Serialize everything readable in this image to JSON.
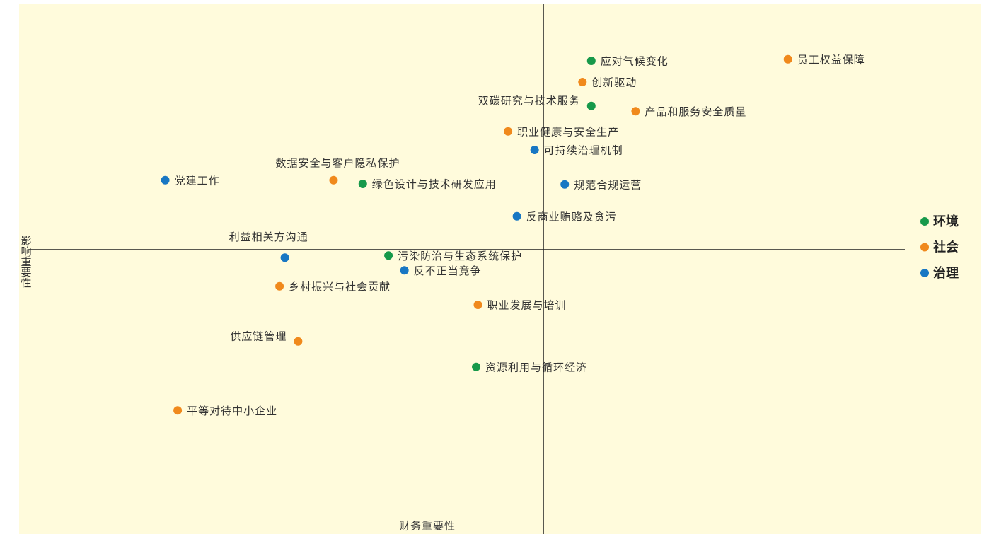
{
  "chart_data": {
    "type": "scatter",
    "x_label": "财务重要性",
    "y_label": "影响重要性",
    "xlim": [
      0,
      100
    ],
    "ylim": [
      0,
      100
    ],
    "series": [
      {
        "name": "环境",
        "color": "#17994a",
        "labels": [
          "应对气候变化",
          "双碳研究与技术服务",
          "绿色设计与技术研发应用",
          "污染防治与生态系统保护",
          "资源利用与循环经济"
        ],
        "x": [
          64.6,
          64.6,
          38.8,
          41.7,
          51.6
        ],
        "y": [
          89.2,
          80.7,
          66.0,
          52.5,
          31.5
        ]
      },
      {
        "name": "社会",
        "color": "#f0891c",
        "labels": [
          "员工权益保障",
          "创新驱动",
          "产品和服务安全质量",
          "职业健康与安全生产",
          "数据安全与客户隐私保护",
          "乡村振兴与社会贡献",
          "职业发展与培训",
          "供应链管理",
          "平等对待中小企业"
        ],
        "x": [
          86.8,
          63.6,
          69.6,
          55.2,
          35.5,
          29.4,
          51.8,
          31.5,
          17.9
        ],
        "y": [
          89.5,
          85.2,
          79.7,
          75.9,
          66.7,
          46.7,
          43.2,
          36.3,
          23.3
        ]
      },
      {
        "name": "治理",
        "color": "#1877c3",
        "labels": [
          "可持续治理机制",
          "党建工作",
          "规范合规运营",
          "反商业贿赂及贪污",
          "利益相关方沟通",
          "反不正当竞争"
        ],
        "x": [
          58.2,
          16.5,
          61.6,
          56.2,
          30.0,
          43.5
        ],
        "y": [
          72.4,
          66.7,
          65.9,
          59.9,
          52.1,
          49.7
        ]
      }
    ]
  }
}
